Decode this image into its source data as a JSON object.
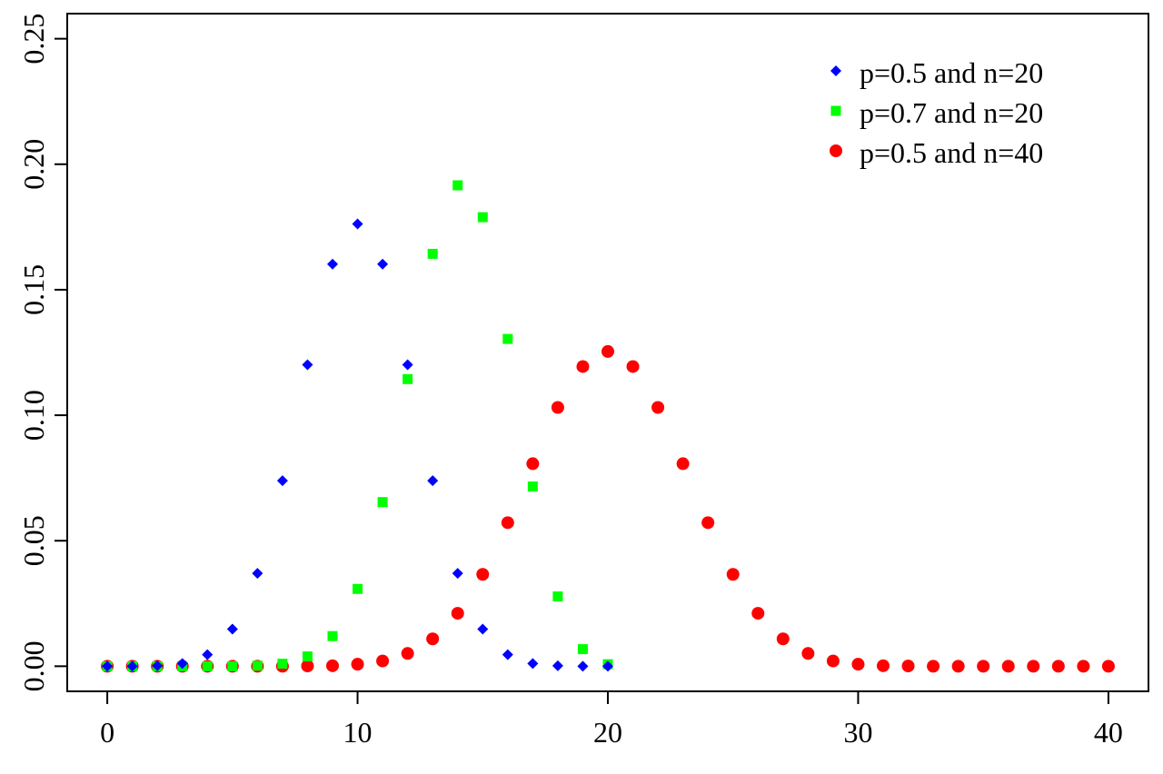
{
  "chart_data": {
    "type": "scatter",
    "title": "",
    "xlabel": "",
    "ylabel": "",
    "xlim": [
      -1.6,
      41.6
    ],
    "ylim": [
      -0.01,
      0.26
    ],
    "x_ticks": [
      0,
      10,
      20,
      30,
      40
    ],
    "x_tick_labels": [
      "0",
      "10",
      "20",
      "30",
      "40"
    ],
    "y_ticks": [
      0,
      0.05,
      0.1,
      0.15,
      0.2,
      0.25
    ],
    "y_tick_labels": [
      "0.00",
      "0.05",
      "0.10",
      "0.15",
      "0.20",
      "0.25"
    ],
    "grid": false,
    "legend_position": "top-right",
    "series": [
      {
        "name": "p=0.5 and n=20",
        "marker": "diamond",
        "color": "#0000ff",
        "x": [
          0,
          1,
          2,
          3,
          4,
          5,
          6,
          7,
          8,
          9,
          10,
          11,
          12,
          13,
          14,
          15,
          16,
          17,
          18,
          19,
          20
        ],
        "values": [
          0.0,
          0.0,
          0.0002,
          0.0011,
          0.0046,
          0.0148,
          0.037,
          0.0739,
          0.1201,
          0.1602,
          0.1762,
          0.1602,
          0.1201,
          0.0739,
          0.037,
          0.0148,
          0.0046,
          0.0011,
          0.0002,
          0.0,
          0.0
        ]
      },
      {
        "name": "p=0.7 and n=20",
        "marker": "square",
        "color": "#00ff00",
        "x": [
          0,
          1,
          2,
          3,
          4,
          5,
          6,
          7,
          8,
          9,
          10,
          11,
          12,
          13,
          14,
          15,
          16,
          17,
          18,
          19,
          20
        ],
        "values": [
          0.0,
          0.0,
          0.0,
          0.0,
          0.0,
          0.0,
          0.0002,
          0.001,
          0.0039,
          0.012,
          0.0308,
          0.0654,
          0.1144,
          0.1643,
          0.1916,
          0.1789,
          0.1304,
          0.0716,
          0.0278,
          0.0068,
          0.0008
        ]
      },
      {
        "name": "p=0.5 and n=40",
        "marker": "circle",
        "color": "#ff0000",
        "x": [
          0,
          1,
          2,
          3,
          4,
          5,
          6,
          7,
          8,
          9,
          10,
          11,
          12,
          13,
          14,
          15,
          16,
          17,
          18,
          19,
          20,
          21,
          22,
          23,
          24,
          25,
          26,
          27,
          28,
          29,
          30,
          31,
          32,
          33,
          34,
          35,
          36,
          37,
          38,
          39,
          40
        ],
        "values": [
          0.0,
          0.0,
          0.0,
          0.0,
          0.0,
          0.0,
          0.0,
          0.0,
          0.0001,
          0.0002,
          0.0008,
          0.0021,
          0.0051,
          0.0109,
          0.0211,
          0.0366,
          0.0572,
          0.0807,
          0.1031,
          0.1194,
          0.1254,
          0.1194,
          0.1031,
          0.0807,
          0.0572,
          0.0366,
          0.0211,
          0.0109,
          0.0051,
          0.0021,
          0.0008,
          0.0002,
          0.0001,
          0.0,
          0.0,
          0.0,
          0.0,
          0.0,
          0.0,
          0.0,
          0.0
        ]
      }
    ]
  }
}
